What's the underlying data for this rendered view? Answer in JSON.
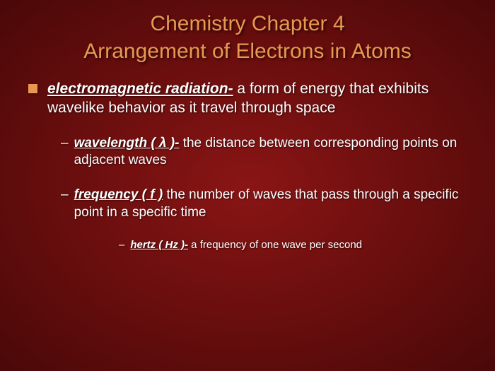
{
  "title_line1": "Chemistry Chapter 4",
  "title_line2": "Arrangement of Electrons in Atoms",
  "bullet1": {
    "term": "electromagnetic radiation-",
    "def": " a form of energy that exhibits wavelike behavior as it travel through space"
  },
  "sub1": {
    "term": "wavelength ( λ )-",
    "def": "  the distance between corresponding points on adjacent waves"
  },
  "sub2": {
    "term": "frequency ( f )",
    "def": "  the number of waves that pass through a specific point in a specific time"
  },
  "subsub1": {
    "term": "hertz  ( Hz )-",
    "def": "  a frequency of one wave per second"
  },
  "colors": {
    "title_color": "#e89850",
    "bullet_color": "#e89850",
    "text_color": "#ffffff",
    "bg_center": "#8a1515",
    "bg_edge": "#4a0808"
  },
  "fonts": {
    "family": "Verdana",
    "title_size_pt": 30,
    "body_lvl1_pt": 21,
    "body_lvl2_pt": 19,
    "body_lvl3_pt": 15
  }
}
